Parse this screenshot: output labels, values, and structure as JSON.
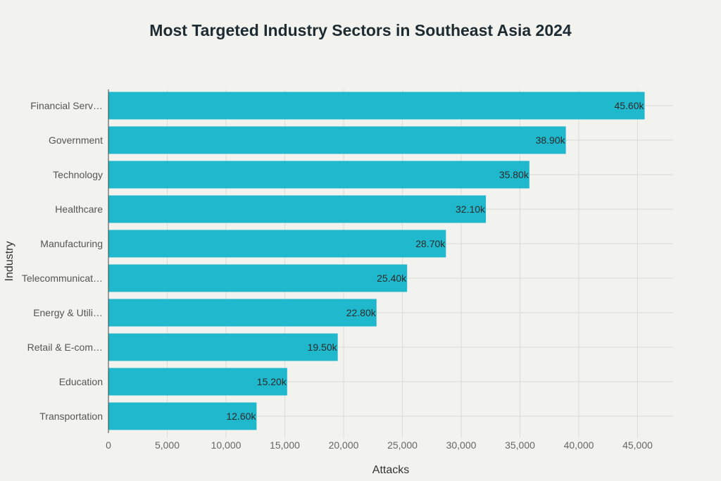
{
  "chart_data": {
    "type": "bar",
    "orientation": "horizontal",
    "title": "Most Targeted Industry Sectors in Southeast Asia 2024",
    "xlabel": "Attacks",
    "ylabel": "Industry",
    "categories": [
      "Financial Serv…",
      "Government",
      "Technology",
      "Healthcare",
      "Manufacturing",
      "Telecommunicat…",
      "Energy & Utili…",
      "Retail & E-com…",
      "Education",
      "Transportation"
    ],
    "values": [
      45600,
      38900,
      35800,
      32100,
      28700,
      25400,
      22800,
      19500,
      15200,
      12600
    ],
    "data_labels": [
      "45.60k",
      "38.90k",
      "35.80k",
      "32.10k",
      "28.70k",
      "25.40k",
      "22.80k",
      "19.50k",
      "15.20k",
      "12.60k"
    ],
    "xlim": [
      0,
      48000
    ],
    "xticks": [
      0,
      5000,
      10000,
      15000,
      20000,
      25000,
      30000,
      35000,
      40000,
      45000
    ],
    "xtick_labels": [
      "0",
      "5,000",
      "10,000",
      "15,000",
      "20,000",
      "25,000",
      "30,000",
      "35,000",
      "40,000",
      "45,000"
    ],
    "grid": true,
    "colors": {
      "bar": "#20b8cc",
      "background": "#f2f2ee",
      "grid": "#dcdcd6"
    }
  }
}
